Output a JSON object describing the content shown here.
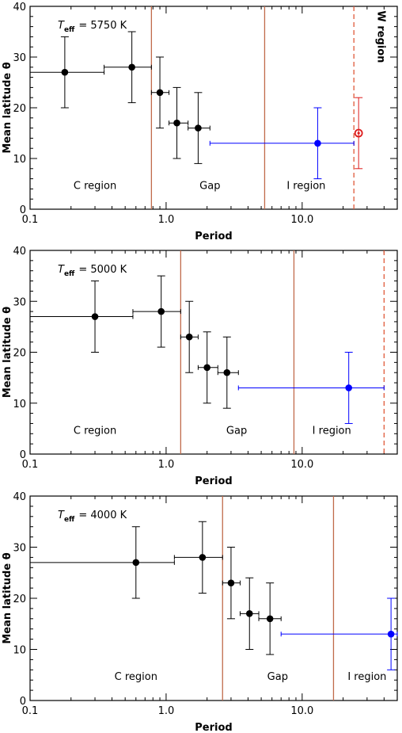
{
  "chart_data": [
    {
      "type": "scatter",
      "title": "",
      "teff_label": {
        "symbol": "T",
        "sub": "eff",
        "value": "= 5750 K"
      },
      "xlabel": "Period",
      "ylabel": "Mean latitude θ",
      "x_scale": "log",
      "xlim": [
        0.1,
        50
      ],
      "ylim": [
        0,
        40
      ],
      "xticks": [
        {
          "v": 0.1,
          "label": "0.1"
        },
        {
          "v": 1,
          "label": "1.0"
        },
        {
          "v": 10,
          "label": "10.0"
        }
      ],
      "yticks": [
        {
          "v": 0,
          "label": "0"
        },
        {
          "v": 10,
          "label": "10"
        },
        {
          "v": 20,
          "label": "20"
        },
        {
          "v": 30,
          "label": "30"
        },
        {
          "v": 40,
          "label": "40"
        }
      ],
      "grid": false,
      "vlines": [
        {
          "x": 0.78,
          "style": "solid",
          "color": "#c06a4a"
        },
        {
          "x": 5.3,
          "style": "solid",
          "color": "#c06a4a"
        },
        {
          "x": 24,
          "style": "dashed",
          "color": "#e05a3a"
        }
      ],
      "region_labels": [
        {
          "text": "C region",
          "x": 0.3,
          "y": 4,
          "rotate": false
        },
        {
          "text": "Gap",
          "x": 2.1,
          "y": 4,
          "rotate": false
        },
        {
          "text": "I region",
          "x": 10.7,
          "y": 4,
          "rotate": false
        },
        {
          "text": "W region",
          "x": 36,
          "y": 34,
          "rotate": true
        }
      ],
      "series": [
        {
          "color": "#000000",
          "marker": "filled",
          "points": [
            {
              "x": 0.18,
              "y": 27,
              "xlo": 0.1,
              "xhi": 0.35,
              "ylo": 20,
              "yhi": 34
            },
            {
              "x": 0.56,
              "y": 28,
              "xlo": 0.35,
              "xhi": 0.78,
              "ylo": 21,
              "yhi": 35
            },
            {
              "x": 0.9,
              "y": 23,
              "xlo": 0.78,
              "xhi": 1.05,
              "ylo": 16,
              "yhi": 30
            },
            {
              "x": 1.2,
              "y": 17,
              "xlo": 1.05,
              "xhi": 1.45,
              "ylo": 10,
              "yhi": 24
            },
            {
              "x": 1.72,
              "y": 16,
              "xlo": 1.45,
              "xhi": 2.1,
              "ylo": 9,
              "yhi": 23
            }
          ]
        },
        {
          "color": "#0000ff",
          "marker": "filled",
          "points": [
            {
              "x": 13,
              "y": 13,
              "xlo": 2.1,
              "xhi": 24,
              "ylo": 6,
              "yhi": 20
            }
          ]
        },
        {
          "color": "#dd1c1c",
          "marker": "ring",
          "points": [
            {
              "x": 26,
              "y": 15,
              "xlo": null,
              "xhi": null,
              "ylo": 8,
              "yhi": 22
            }
          ]
        }
      ]
    },
    {
      "type": "scatter",
      "title": "",
      "teff_label": {
        "symbol": "T",
        "sub": "eff",
        "value": "= 5000 K"
      },
      "xlabel": "Period",
      "ylabel": "Mean latitude θ",
      "x_scale": "log",
      "xlim": [
        0.1,
        50
      ],
      "ylim": [
        0,
        40
      ],
      "xticks": [
        {
          "v": 0.1,
          "label": "0.1"
        },
        {
          "v": 1,
          "label": "1.0"
        },
        {
          "v": 10,
          "label": "10.0"
        }
      ],
      "yticks": [
        {
          "v": 0,
          "label": "0"
        },
        {
          "v": 10,
          "label": "10"
        },
        {
          "v": 20,
          "label": "20"
        },
        {
          "v": 30,
          "label": "30"
        },
        {
          "v": 40,
          "label": "40"
        }
      ],
      "grid": false,
      "vlines": [
        {
          "x": 1.28,
          "style": "solid",
          "color": "#c06a4a"
        },
        {
          "x": 8.7,
          "style": "solid",
          "color": "#c06a4a"
        },
        {
          "x": 40,
          "style": "dashed",
          "color": "#e05a3a"
        }
      ],
      "region_labels": [
        {
          "text": "C region",
          "x": 0.3,
          "y": 4,
          "rotate": false
        },
        {
          "text": "Gap",
          "x": 3.3,
          "y": 4,
          "rotate": false
        },
        {
          "text": "I region",
          "x": 16.5,
          "y": 4,
          "rotate": false
        }
      ],
      "series": [
        {
          "color": "#000000",
          "marker": "filled",
          "points": [
            {
              "x": 0.3,
              "y": 27,
              "xlo": 0.1,
              "xhi": 0.57,
              "ylo": 20,
              "yhi": 34
            },
            {
              "x": 0.92,
              "y": 28,
              "xlo": 0.57,
              "xhi": 1.28,
              "ylo": 21,
              "yhi": 35
            },
            {
              "x": 1.48,
              "y": 23,
              "xlo": 1.28,
              "xhi": 1.72,
              "ylo": 16,
              "yhi": 30
            },
            {
              "x": 2.0,
              "y": 17,
              "xlo": 1.72,
              "xhi": 2.4,
              "ylo": 10,
              "yhi": 24
            },
            {
              "x": 2.8,
              "y": 16,
              "xlo": 2.4,
              "xhi": 3.4,
              "ylo": 9,
              "yhi": 23
            }
          ]
        },
        {
          "color": "#0000ff",
          "marker": "filled",
          "points": [
            {
              "x": 22,
              "y": 13,
              "xlo": 3.4,
              "xhi": 40,
              "ylo": 6,
              "yhi": 20
            }
          ]
        }
      ]
    },
    {
      "type": "scatter",
      "title": "",
      "teff_label": {
        "symbol": "T",
        "sub": "eff",
        "value": "= 4000 K"
      },
      "xlabel": "Period",
      "ylabel": "Mean latitude θ",
      "x_scale": "log",
      "xlim": [
        0.1,
        50
      ],
      "ylim": [
        0,
        40
      ],
      "xticks": [
        {
          "v": 0.1,
          "label": "0.1"
        },
        {
          "v": 1,
          "label": "1.0"
        },
        {
          "v": 10,
          "label": "10.0"
        }
      ],
      "yticks": [
        {
          "v": 0,
          "label": "0"
        },
        {
          "v": 10,
          "label": "10"
        },
        {
          "v": 20,
          "label": "20"
        },
        {
          "v": 30,
          "label": "30"
        },
        {
          "v": 40,
          "label": "40"
        }
      ],
      "grid": false,
      "vlines": [
        {
          "x": 2.6,
          "style": "solid",
          "color": "#c06a4a"
        },
        {
          "x": 17,
          "style": "solid",
          "color": "#c06a4a"
        }
      ],
      "region_labels": [
        {
          "text": "C region",
          "x": 0.6,
          "y": 4,
          "rotate": false
        },
        {
          "text": "Gap",
          "x": 6.6,
          "y": 4,
          "rotate": false
        },
        {
          "text": "I region",
          "x": 30,
          "y": 4,
          "rotate": false
        }
      ],
      "series": [
        {
          "color": "#000000",
          "marker": "filled",
          "points": [
            {
              "x": 0.6,
              "y": 27,
              "xlo": 0.1,
              "xhi": 1.15,
              "ylo": 20,
              "yhi": 34
            },
            {
              "x": 1.85,
              "y": 28,
              "xlo": 1.15,
              "xhi": 2.6,
              "ylo": 21,
              "yhi": 35
            },
            {
              "x": 3.0,
              "y": 23,
              "xlo": 2.6,
              "xhi": 3.5,
              "ylo": 16,
              "yhi": 30
            },
            {
              "x": 4.1,
              "y": 17,
              "xlo": 3.5,
              "xhi": 4.8,
              "ylo": 10,
              "yhi": 24
            },
            {
              "x": 5.8,
              "y": 16,
              "xlo": 4.8,
              "xhi": 7,
              "ylo": 9,
              "yhi": 23
            }
          ]
        },
        {
          "color": "#0000ff",
          "marker": "filled",
          "points": [
            {
              "x": 45,
              "y": 13,
              "xlo": 7,
              "xhi": 50,
              "ylo": 6,
              "yhi": 20
            }
          ]
        }
      ]
    }
  ]
}
